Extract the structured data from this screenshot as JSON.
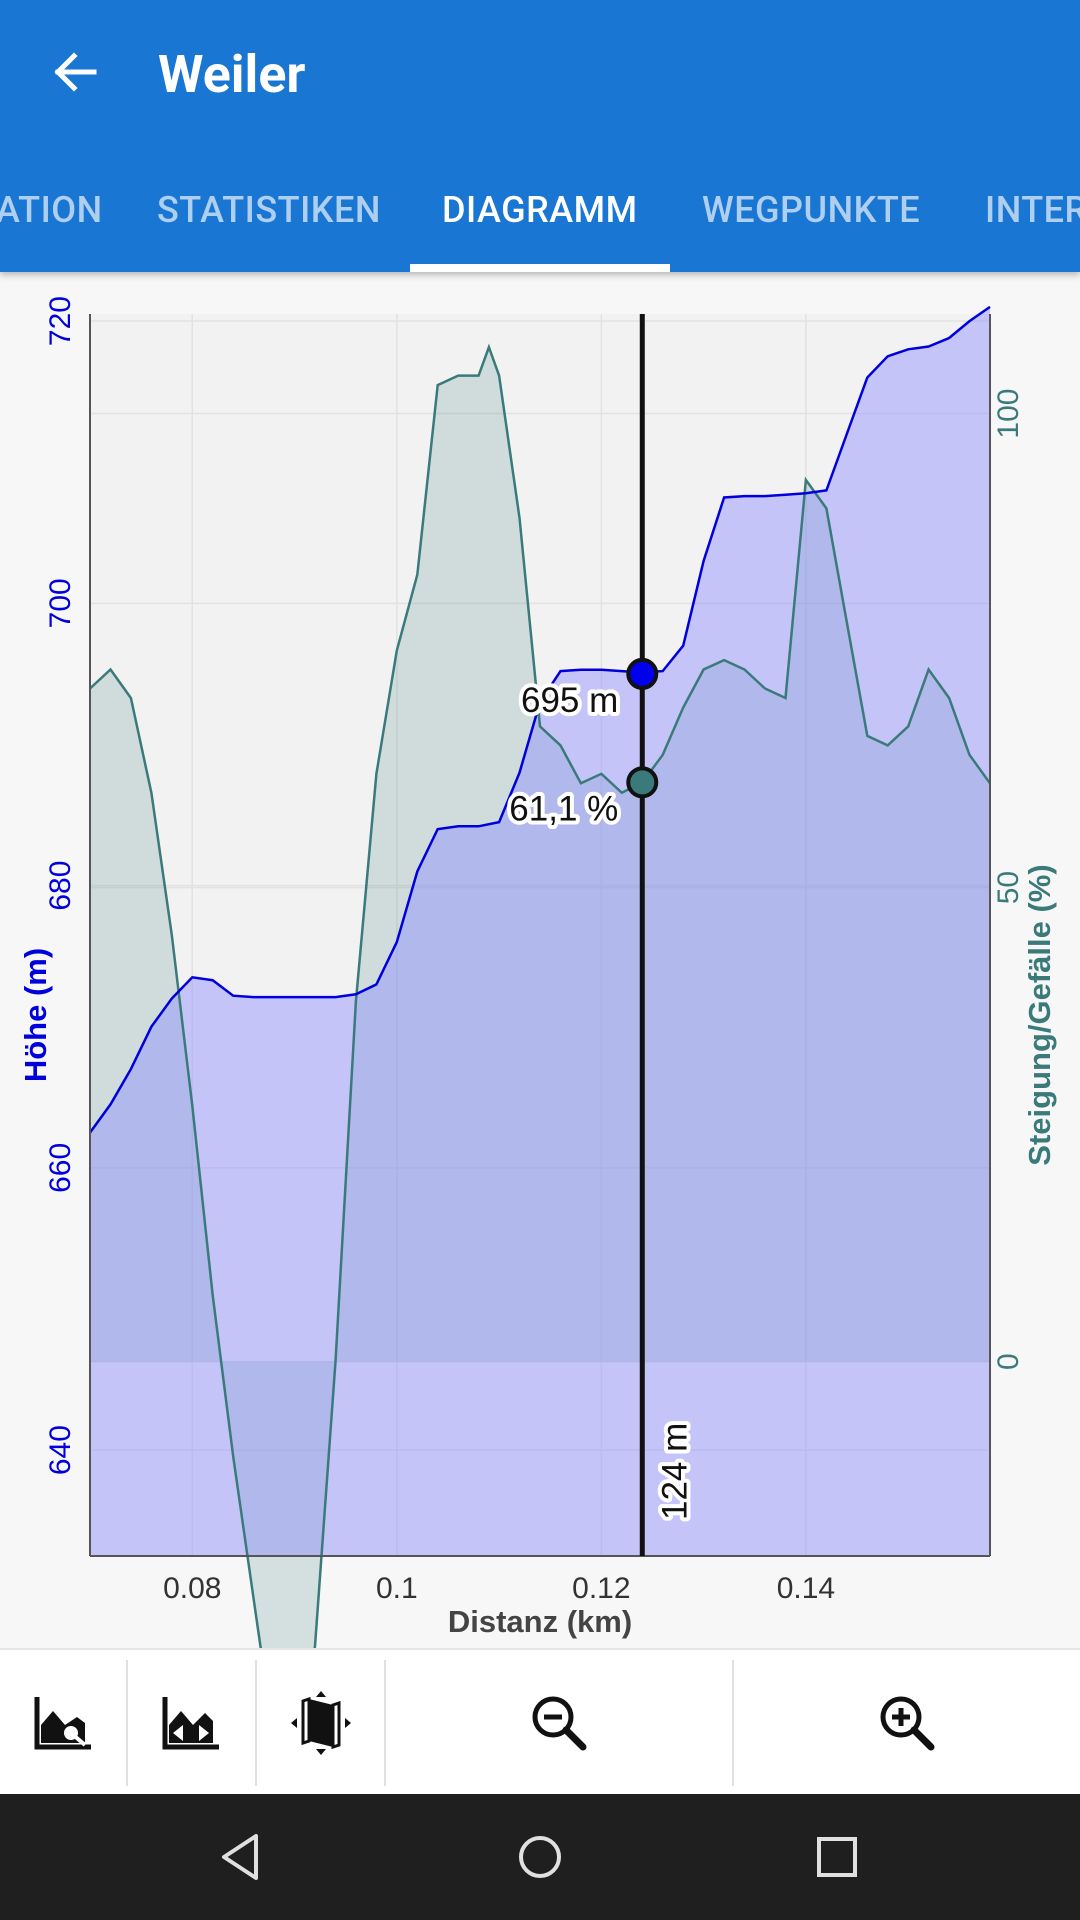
{
  "header": {
    "title": "Weiler",
    "tabs": [
      {
        "label": "ATION"
      },
      {
        "label": "STATISTIKEN"
      },
      {
        "label": "DIAGRAMM"
      },
      {
        "label": "WEGPUNKTE"
      },
      {
        "label": "INTER"
      }
    ],
    "active_tab": "DIAGRAMM"
  },
  "chart_data": {
    "type": "area",
    "title": "",
    "xlabel": "Distanz (km)",
    "ylabel": "Höhe (m)",
    "y2label": "Steigung/Gefälle (%)",
    "xlim": [
      0.07,
      0.158
    ],
    "ylim": [
      632.5,
      720.5
    ],
    "y2lim": [
      -20.5,
      110.5
    ],
    "xticks": [
      "0.08",
      "0.1",
      "0.12",
      "0.14"
    ],
    "yticks": [
      "640",
      "660",
      "680",
      "700",
      "720"
    ],
    "y2ticks": [
      "0",
      "50",
      "100"
    ],
    "grid": true,
    "colors": {
      "elevation": "#0000dd",
      "slope": "#3a7a7a",
      "cursor": "#111111"
    },
    "series": [
      {
        "name": "Höhe (m)",
        "x": [
          0.07,
          0.072,
          0.074,
          0.076,
          0.078,
          0.08,
          0.082,
          0.084,
          0.086,
          0.088,
          0.09,
          0.092,
          0.094,
          0.096,
          0.098,
          0.1,
          0.102,
          0.104,
          0.106,
          0.108,
          0.11,
          0.112,
          0.114,
          0.116,
          0.118,
          0.12,
          0.122,
          0.124,
          0.126,
          0.128,
          0.13,
          0.132,
          0.134,
          0.136,
          0.138,
          0.14,
          0.142,
          0.144,
          0.146,
          0.148,
          0.15,
          0.152,
          0.154,
          0.156,
          0.158
        ],
        "values": [
          662.5,
          664.5,
          667,
          670,
          672,
          673.5,
          673.3,
          672.2,
          672.1,
          672.1,
          672.1,
          672.1,
          672.1,
          672.3,
          673,
          676,
          681,
          684,
          684.2,
          684.2,
          684.5,
          688,
          693,
          695.2,
          695.3,
          695.3,
          695.2,
          695.1,
          695.2,
          697,
          703,
          707.5,
          707.6,
          707.6,
          707.7,
          707.8,
          708,
          712,
          716,
          717.5,
          718,
          718.2,
          718.8,
          720,
          721
        ]
      },
      {
        "name": "Steigung/Gefälle (%)",
        "x": [
          0.07,
          0.072,
          0.074,
          0.076,
          0.078,
          0.08,
          0.082,
          0.084,
          0.086,
          0.088,
          0.09,
          0.092,
          0.094,
          0.096,
          0.098,
          0.1,
          0.102,
          0.104,
          0.106,
          0.108,
          0.109,
          0.11,
          0.112,
          0.114,
          0.116,
          0.118,
          0.12,
          0.122,
          0.124,
          0.126,
          0.128,
          0.13,
          0.132,
          0.134,
          0.136,
          0.138,
          0.14,
          0.142,
          0.144,
          0.146,
          0.148,
          0.15,
          0.152,
          0.154,
          0.156,
          0.158
        ],
        "values": [
          71,
          73,
          70,
          60,
          45,
          27,
          7,
          -10,
          -25,
          -40,
          -46,
          -30,
          0,
          38,
          62,
          75,
          83,
          103,
          104,
          104,
          107,
          104,
          89,
          67,
          65,
          61,
          62,
          60,
          61.1,
          64,
          69,
          73,
          74,
          73,
          71,
          70,
          93,
          90,
          78,
          66,
          65,
          67,
          73,
          70,
          64,
          61
        ]
      }
    ],
    "cursor": {
      "x": 0.124,
      "elevation_label": "695 m",
      "elevation_value": 695,
      "slope_label": "61,1 %",
      "slope_value": 61.1,
      "distance_label": "124 m"
    }
  },
  "toolbar": {
    "buttons": [
      {
        "icon": "chart-settings-icon"
      },
      {
        "icon": "chart-fit-icon"
      },
      {
        "icon": "map-view-icon"
      },
      {
        "icon": "zoom-out-icon"
      },
      {
        "icon": "zoom-in-icon"
      }
    ]
  },
  "navbar": {
    "buttons": [
      {
        "icon": "nav-back-icon"
      },
      {
        "icon": "nav-home-icon"
      },
      {
        "icon": "nav-recents-icon"
      }
    ]
  }
}
